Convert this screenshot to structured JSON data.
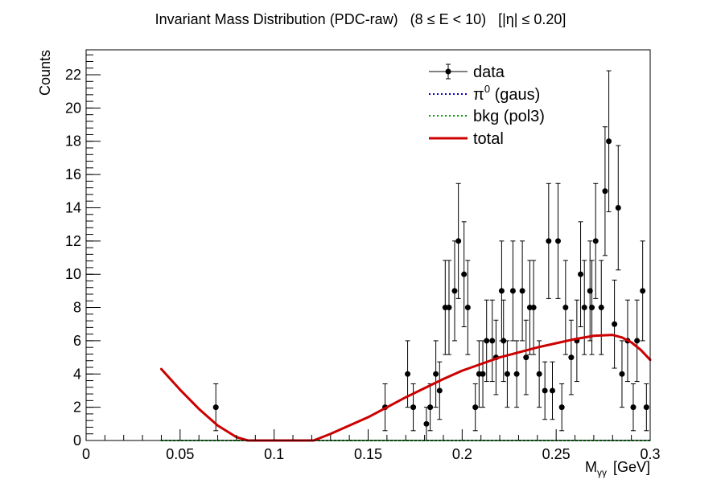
{
  "chart_data": {
    "type": "scatter",
    "title": "Invariant Mass Distribution (PDC-raw)   (8 ≤ E < 10)   [|η| ≤ 0.20]",
    "xlabel": "M_γγ  [GeV]",
    "xlabel_main": "M",
    "xlabel_sub": "γγ",
    "xlabel_unit": "[GeV]",
    "ylabel": "Counts",
    "xlim": [
      0,
      0.3
    ],
    "ylim": [
      0,
      23.5
    ],
    "xticks": [
      0,
      0.05,
      0.1,
      0.15,
      0.2,
      0.25,
      0.3
    ],
    "xtick_labels": [
      "0",
      "0.05",
      "0.1",
      "0.15",
      "0.2",
      "0.25",
      "0.3"
    ],
    "yticks": [
      0,
      2,
      4,
      6,
      8,
      10,
      12,
      14,
      16,
      18,
      20,
      22
    ],
    "ytick_labels": [
      "0",
      "2",
      "4",
      "6",
      "8",
      "10",
      "12",
      "14",
      "16",
      "18",
      "20",
      "22"
    ],
    "legend": {
      "position": "top-right",
      "entries": [
        {
          "label": "data",
          "style": "marker",
          "color": "#000000"
        },
        {
          "label": "π⁰ (gaus)",
          "label_main": "π",
          "label_sup": "0",
          "label_rest": " (gaus)",
          "style": "dotted",
          "color": "#0000cc"
        },
        {
          "label": "bkg (pol3)",
          "style": "dotted",
          "color": "#00a000"
        },
        {
          "label": "total",
          "style": "solid",
          "color": "#cc0000"
        }
      ]
    },
    "series": [
      {
        "name": "data",
        "style": "errorbar",
        "color": "#000000",
        "x": [
          0.069,
          0.159,
          0.171,
          0.174,
          0.181,
          0.183,
          0.186,
          0.188,
          0.191,
          0.193,
          0.196,
          0.198,
          0.201,
          0.203,
          0.207,
          0.209,
          0.211,
          0.213,
          0.216,
          0.218,
          0.221,
          0.222,
          0.224,
          0.227,
          0.229,
          0.232,
          0.234,
          0.236,
          0.238,
          0.241,
          0.244,
          0.246,
          0.248,
          0.251,
          0.253,
          0.255,
          0.258,
          0.261,
          0.263,
          0.265,
          0.268,
          0.269,
          0.271,
          0.274,
          0.276,
          0.278,
          0.281,
          0.283,
          0.285,
          0.288,
          0.291,
          0.293,
          0.296,
          0.298
        ],
        "y": [
          2,
          2,
          4,
          2,
          1,
          2,
          4,
          3,
          8,
          8,
          9,
          12,
          10,
          8,
          2,
          4,
          4,
          6,
          6,
          5,
          9,
          6,
          4,
          9,
          4,
          9,
          5,
          8,
          8,
          4,
          3,
          12,
          3,
          12,
          2,
          8,
          5,
          6,
          10,
          8,
          9,
          8,
          12,
          8,
          15,
          18,
          7,
          14,
          4,
          6,
          2,
          6,
          9,
          2
        ],
        "yerr": [
          1.41,
          1.41,
          2.0,
          1.41,
          1.0,
          1.41,
          2.0,
          1.73,
          2.83,
          2.83,
          3.0,
          3.46,
          3.16,
          2.83,
          1.41,
          2.0,
          2.0,
          2.45,
          2.45,
          2.24,
          3.0,
          2.45,
          2.0,
          3.0,
          2.0,
          3.0,
          2.24,
          2.83,
          2.83,
          2.0,
          1.73,
          3.46,
          1.73,
          3.46,
          1.41,
          2.83,
          2.24,
          2.45,
          3.16,
          2.83,
          3.0,
          2.83,
          3.46,
          2.83,
          3.87,
          4.24,
          2.65,
          3.74,
          2.0,
          2.45,
          1.41,
          2.45,
          3.0,
          1.41
        ]
      },
      {
        "name": "π⁰ (gaus)",
        "style": "dotted",
        "color": "#0000cc",
        "x": [
          0.04,
          0.3
        ],
        "y": [
          0,
          0
        ]
      },
      {
        "name": "bkg (pol3)",
        "style": "dotted",
        "color": "#00a000",
        "x": [
          0.04,
          0.3
        ],
        "y": [
          0,
          0
        ]
      },
      {
        "name": "total",
        "style": "solid",
        "color": "#cc0000",
        "x": [
          0.04,
          0.05,
          0.06,
          0.07,
          0.08,
          0.086,
          0.121,
          0.13,
          0.14,
          0.15,
          0.16,
          0.17,
          0.18,
          0.19,
          0.2,
          0.21,
          0.22,
          0.23,
          0.24,
          0.25,
          0.26,
          0.27,
          0.28,
          0.285,
          0.29,
          0.295,
          0.3
        ],
        "y": [
          4.3,
          3.05,
          1.9,
          0.9,
          0.2,
          0,
          0,
          0.4,
          0.9,
          1.4,
          2.0,
          2.6,
          3.15,
          3.7,
          4.2,
          4.6,
          5.0,
          5.3,
          5.6,
          5.85,
          6.1,
          6.3,
          6.35,
          6.2,
          5.9,
          5.45,
          4.85
        ]
      }
    ]
  }
}
